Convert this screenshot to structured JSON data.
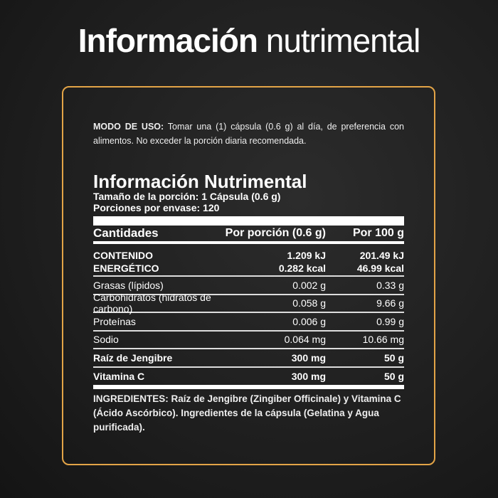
{
  "title": {
    "bold": "Información",
    "light": "nutrimental"
  },
  "modo": {
    "label": "MODO DE USO:",
    "text": " Tomar una (1) cápsula (0.6 g) al día, de preferencia con alimentos. No exceder la porción diaria recomendada."
  },
  "panel": {
    "heading": "Información Nutrimental",
    "serving_size": "Tamaño de la porción: 1 Cápsula (0.6 g)",
    "servings": "Porciones por envase: 120",
    "columns": [
      "Cantidades",
      "Por porción (0.6 g)",
      "Por 100 g"
    ],
    "energy": {
      "label1": "CONTENIDO",
      "label2": "ENERGÉTICO",
      "per_serving": [
        "1.209 kJ",
        "0.282 kcal"
      ],
      "per_100": [
        "201.49 kJ",
        "46.99 kcal"
      ]
    },
    "rows": [
      {
        "name": "Grasas (lípidos)",
        "per_serving": "0.002 g",
        "per_100": "0.33 g"
      },
      {
        "name": "Carbohidratos (hidratos de carbono)",
        "per_serving": "0.058 g",
        "per_100": "9.66 g"
      },
      {
        "name": "Proteínas",
        "per_serving": "0.006 g",
        "per_100": "0.99 g"
      },
      {
        "name": "Sodio",
        "per_serving": "0.064 mg",
        "per_100": "10.66 mg"
      },
      {
        "name": "Raíz de Jengibre",
        "per_serving": "300 mg",
        "per_100": "50 g"
      },
      {
        "name": "Vitamina C",
        "per_serving": "300 mg",
        "per_100": "50 g"
      }
    ],
    "ingredients": "INGREDIENTES: Raíz de Jengibre (Zingiber Officinale) y Vitamina C (Ácido Ascórbico). Ingredientes de la cápsula (Gelatina y Agua purificada)."
  },
  "colors": {
    "accent": "#e3a447"
  }
}
